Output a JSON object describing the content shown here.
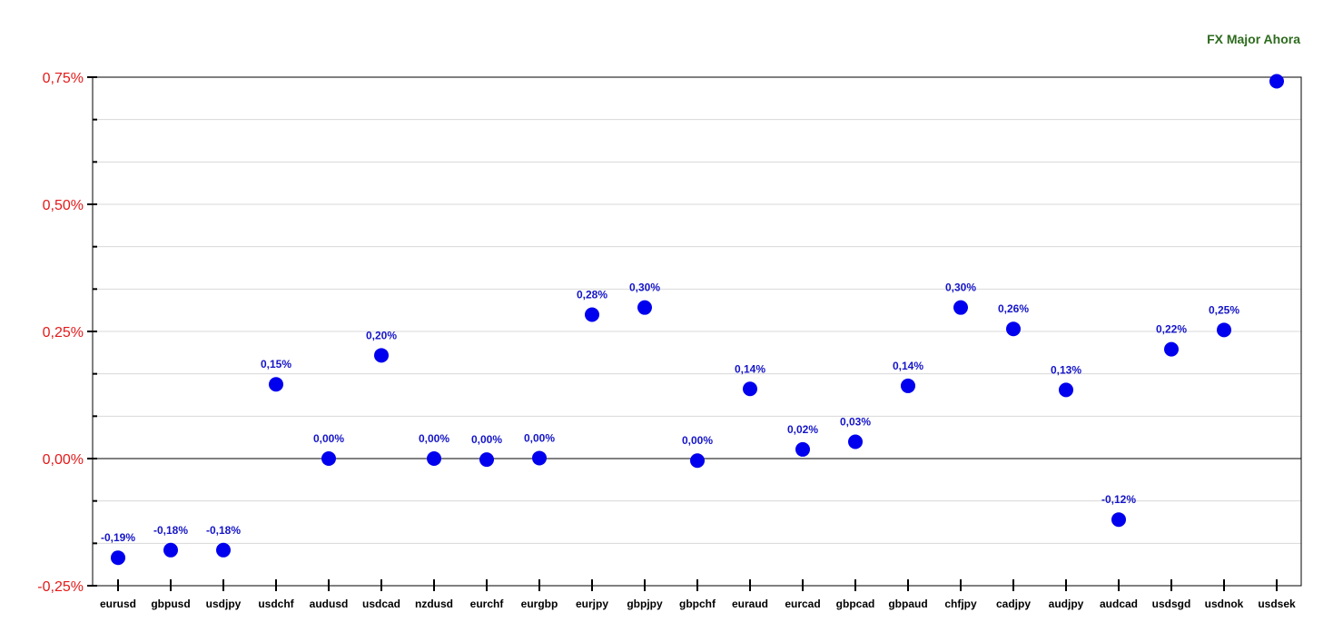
{
  "chart_data": {
    "type": "scatter",
    "title": "FX Major Ahora",
    "xlabel": "",
    "ylabel": "",
    "ylim": [
      -0.25,
      0.75
    ],
    "yticks": [
      -0.25,
      0,
      0.25,
      0.5,
      0.75
    ],
    "ytick_labels": [
      "-0,25%",
      "0,00%",
      "0,25%",
      "0,50%",
      "0,75%"
    ],
    "grid": true,
    "categories": [
      "eurusd",
      "gbpusd",
      "usdjpy",
      "usdchf",
      "audusd",
      "usdcad",
      "nzdusd",
      "eurchf",
      "eurgbp",
      "eurjpy",
      "gbpjpy",
      "gbpchf",
      "euraud",
      "eurcad",
      "gbpcad",
      "gbpaud",
      "chfjpy",
      "cadjpy",
      "audjpy",
      "audcad",
      "usdsgd",
      "usdnok",
      "usdsek"
    ],
    "values": [
      -0.195,
      -0.18,
      -0.18,
      0.146,
      0.0,
      0.203,
      0.0,
      -0.002,
      0.001,
      0.283,
      0.297,
      -0.004,
      0.137,
      0.018,
      0.033,
      0.143,
      0.297,
      0.255,
      0.135,
      -0.12,
      0.215,
      0.253,
      0.742
    ],
    "data_labels": [
      "-0,19%",
      "-0,18%",
      "-0,18%",
      "0,15%",
      "0,00%",
      "0,20%",
      "0,00%",
      "0,00%",
      "0,00%",
      "0,28%",
      "0,30%",
      "0,00%",
      "0,14%",
      "0,02%",
      "0,03%",
      "0,14%",
      "0,30%",
      "0,26%",
      "0,13%",
      "-0,12%",
      "0,22%",
      "0,25%",
      ""
    ],
    "colors": {
      "marker": "#0000ee",
      "data_label": "#1515c8",
      "y_tick_label": "#e31a1a",
      "title": "#2e6b1e",
      "grid": "#d8d8d8",
      "axis": "#000000"
    }
  }
}
